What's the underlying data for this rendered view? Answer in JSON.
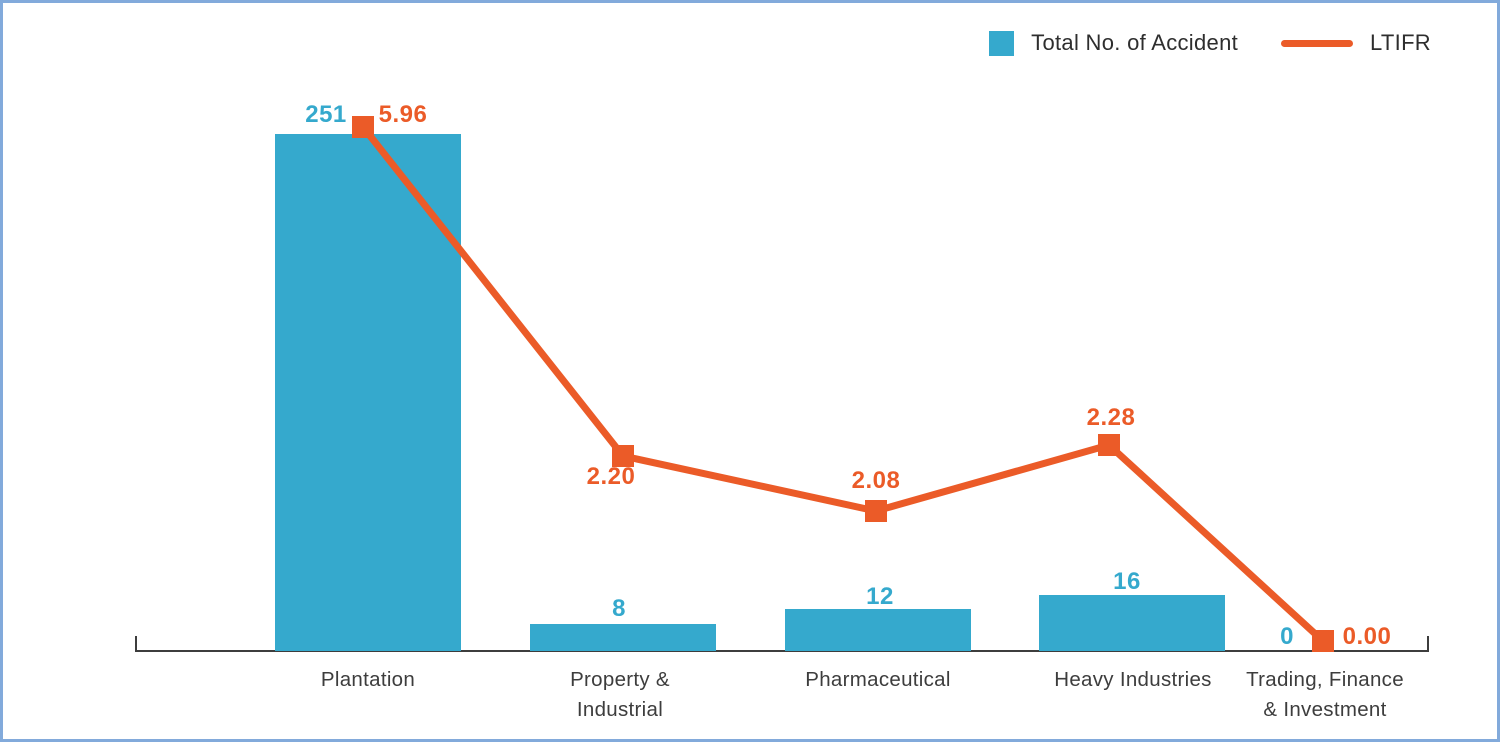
{
  "frame": {
    "background": "#FFFFFF",
    "border_color": "#82AADB"
  },
  "legend": {
    "position": "top-right",
    "items": [
      {
        "label": "Total No. of Accident",
        "swatch": "square",
        "color": "#35A9CD"
      },
      {
        "label": "LTIFR",
        "swatch": "line",
        "color": "#EB5B28"
      }
    ]
  },
  "chart_data": {
    "type": "bar",
    "subtype": "bar-line-combo",
    "title": "",
    "xlabel": "",
    "ylabel": "",
    "grid": false,
    "y_axis_ticks_visible": false,
    "legend_position": "top-right",
    "categories": [
      "Plantation",
      "Property &\nIndustrial",
      "Pharmaceutical",
      "Heavy Industries",
      "Trading, Finance\n& Investment"
    ],
    "series": [
      {
        "name": "Total No. of Accident",
        "type": "bar",
        "color": "#35A9CD",
        "values": [
          251,
          8,
          12,
          16,
          0
        ],
        "data_labels": [
          "251",
          "8",
          "12",
          "16",
          "0"
        ]
      },
      {
        "name": "LTIFR",
        "type": "line",
        "color": "#EB5B28",
        "marker": "square",
        "values": [
          5.96,
          2.2,
          2.08,
          2.28,
          0.0
        ],
        "data_labels": [
          "5.96",
          "2.20",
          "2.08",
          "2.28",
          "0.00"
        ]
      }
    ]
  },
  "colors": {
    "bar": "#35A9CD",
    "bar_label": "#35A9CD",
    "line": "#EB5B28",
    "line_label": "#EB5B28",
    "axis": "#3d3d3d",
    "category_label": "#3d3d3d"
  }
}
